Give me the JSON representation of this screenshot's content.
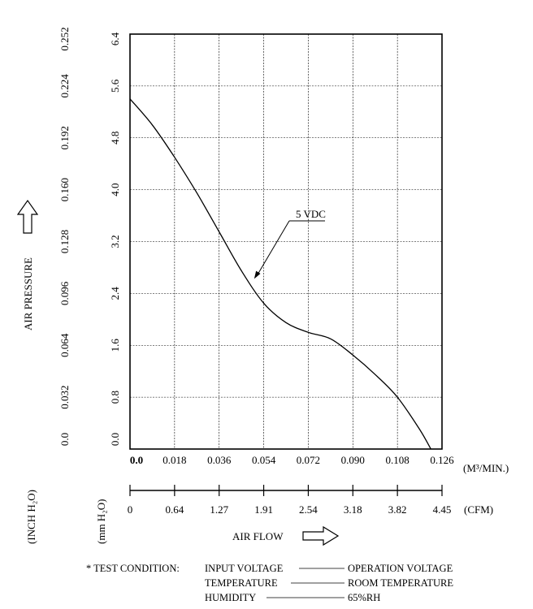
{
  "chart_data": {
    "type": "line",
    "x_primary": {
      "unit": "(M³/MIN.)",
      "ticks": [
        "0.0",
        "0.018",
        "0.036",
        "0.054",
        "0.072",
        "0.090",
        "0.108",
        "0.126"
      ],
      "range": [
        0,
        0.126
      ]
    },
    "x_secondary": {
      "unit": "(CFM)",
      "ticks": [
        "0",
        "0.64",
        "1.27",
        "1.91",
        "2.54",
        "3.18",
        "3.82",
        "4.45"
      ],
      "range": [
        0,
        4.45
      ]
    },
    "y_primary": {
      "unit": "(mm H₂O)",
      "ticks": [
        "0.0",
        "0.8",
        "1.6",
        "2.4",
        "3.2",
        "4.0",
        "4.8",
        "5.6",
        "6.4"
      ],
      "range": [
        0,
        6.4
      ]
    },
    "y_secondary": {
      "unit": "(INCH H₂O)",
      "ticks": [
        "0.0",
        "0.032",
        "0.064",
        "0.096",
        "0.128",
        "0.160",
        "0.192",
        "0.224",
        "0.252"
      ],
      "range": [
        0,
        0.252
      ]
    },
    "xlabel": "AIR FLOW",
    "ylabel": "AIR PRESSURE",
    "grid": true,
    "series": [
      {
        "name": "5 VDC",
        "x": [
          0.0,
          0.009,
          0.018,
          0.027,
          0.036,
          0.045,
          0.054,
          0.063,
          0.072,
          0.081,
          0.09,
          0.099,
          0.108,
          0.117,
          0.1215
        ],
        "y": [
          5.4,
          5.0,
          4.5,
          3.95,
          3.35,
          2.75,
          2.25,
          1.95,
          1.8,
          1.7,
          1.45,
          1.15,
          0.8,
          0.3,
          0.0
        ]
      }
    ]
  },
  "test_condition": {
    "title": "* TEST CONDITION:",
    "rows": [
      {
        "label": "INPUT VOLTAGE",
        "value": "OPERATION VOLTAGE"
      },
      {
        "label": "TEMPERATURE",
        "value": "ROOM TEMPERATURE"
      },
      {
        "label": "HUMIDITY",
        "value": "65%RH"
      }
    ]
  }
}
